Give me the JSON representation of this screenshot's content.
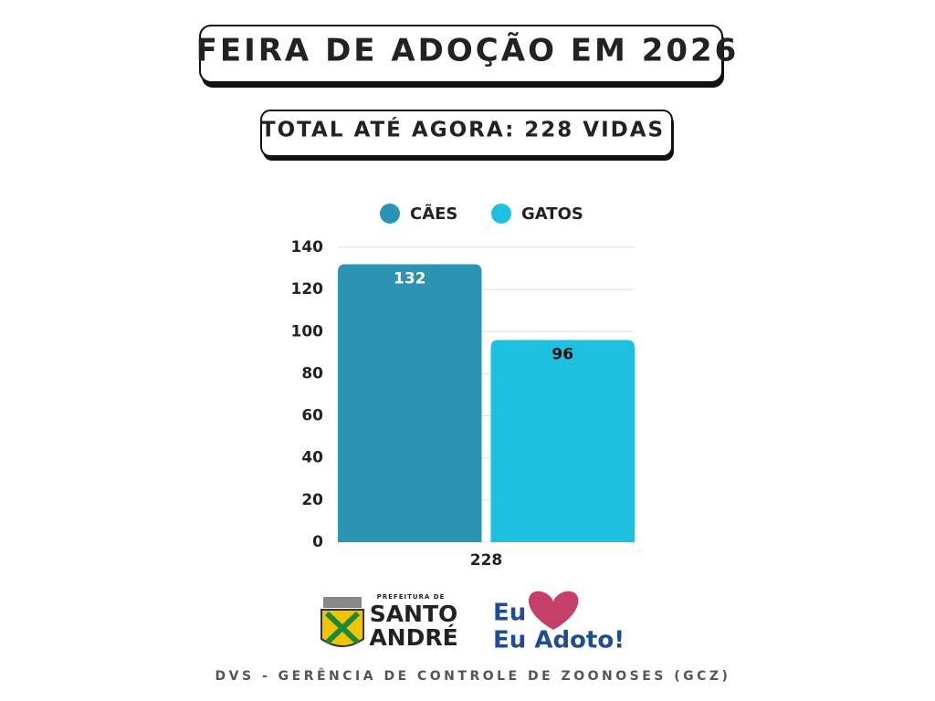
{
  "chart_data": {
    "type": "bar",
    "title": "FEIRA DE ADOÇÃO EM 2026",
    "subtitle": "TOTAL ATÉ AGORA: 228 VIDAS",
    "categories": [
      "228"
    ],
    "series": [
      {
        "name": "CÃES",
        "color": "#2b94b3",
        "label_color": "#ffffff",
        "values": [
          132
        ]
      },
      {
        "name": "GATOS",
        "color": "#1ec0e0",
        "label_color": "#111111",
        "values": [
          96
        ]
      }
    ],
    "ylim": [
      0,
      140
    ],
    "yticks": [
      0,
      20,
      40,
      60,
      80,
      100,
      120,
      140
    ],
    "grid": true,
    "legend": "top"
  },
  "logos": {
    "santo_andre": {
      "top": "PREFEITURA DE",
      "line1": "SANTO",
      "line2": "ANDRÉ"
    },
    "eu_adoto": {
      "line1": "Eu",
      "line2": "Eu Adoto!"
    }
  },
  "footer": "DVS - GERÊNCIA DE CONTROLE DE ZOONOSES (GCZ)"
}
